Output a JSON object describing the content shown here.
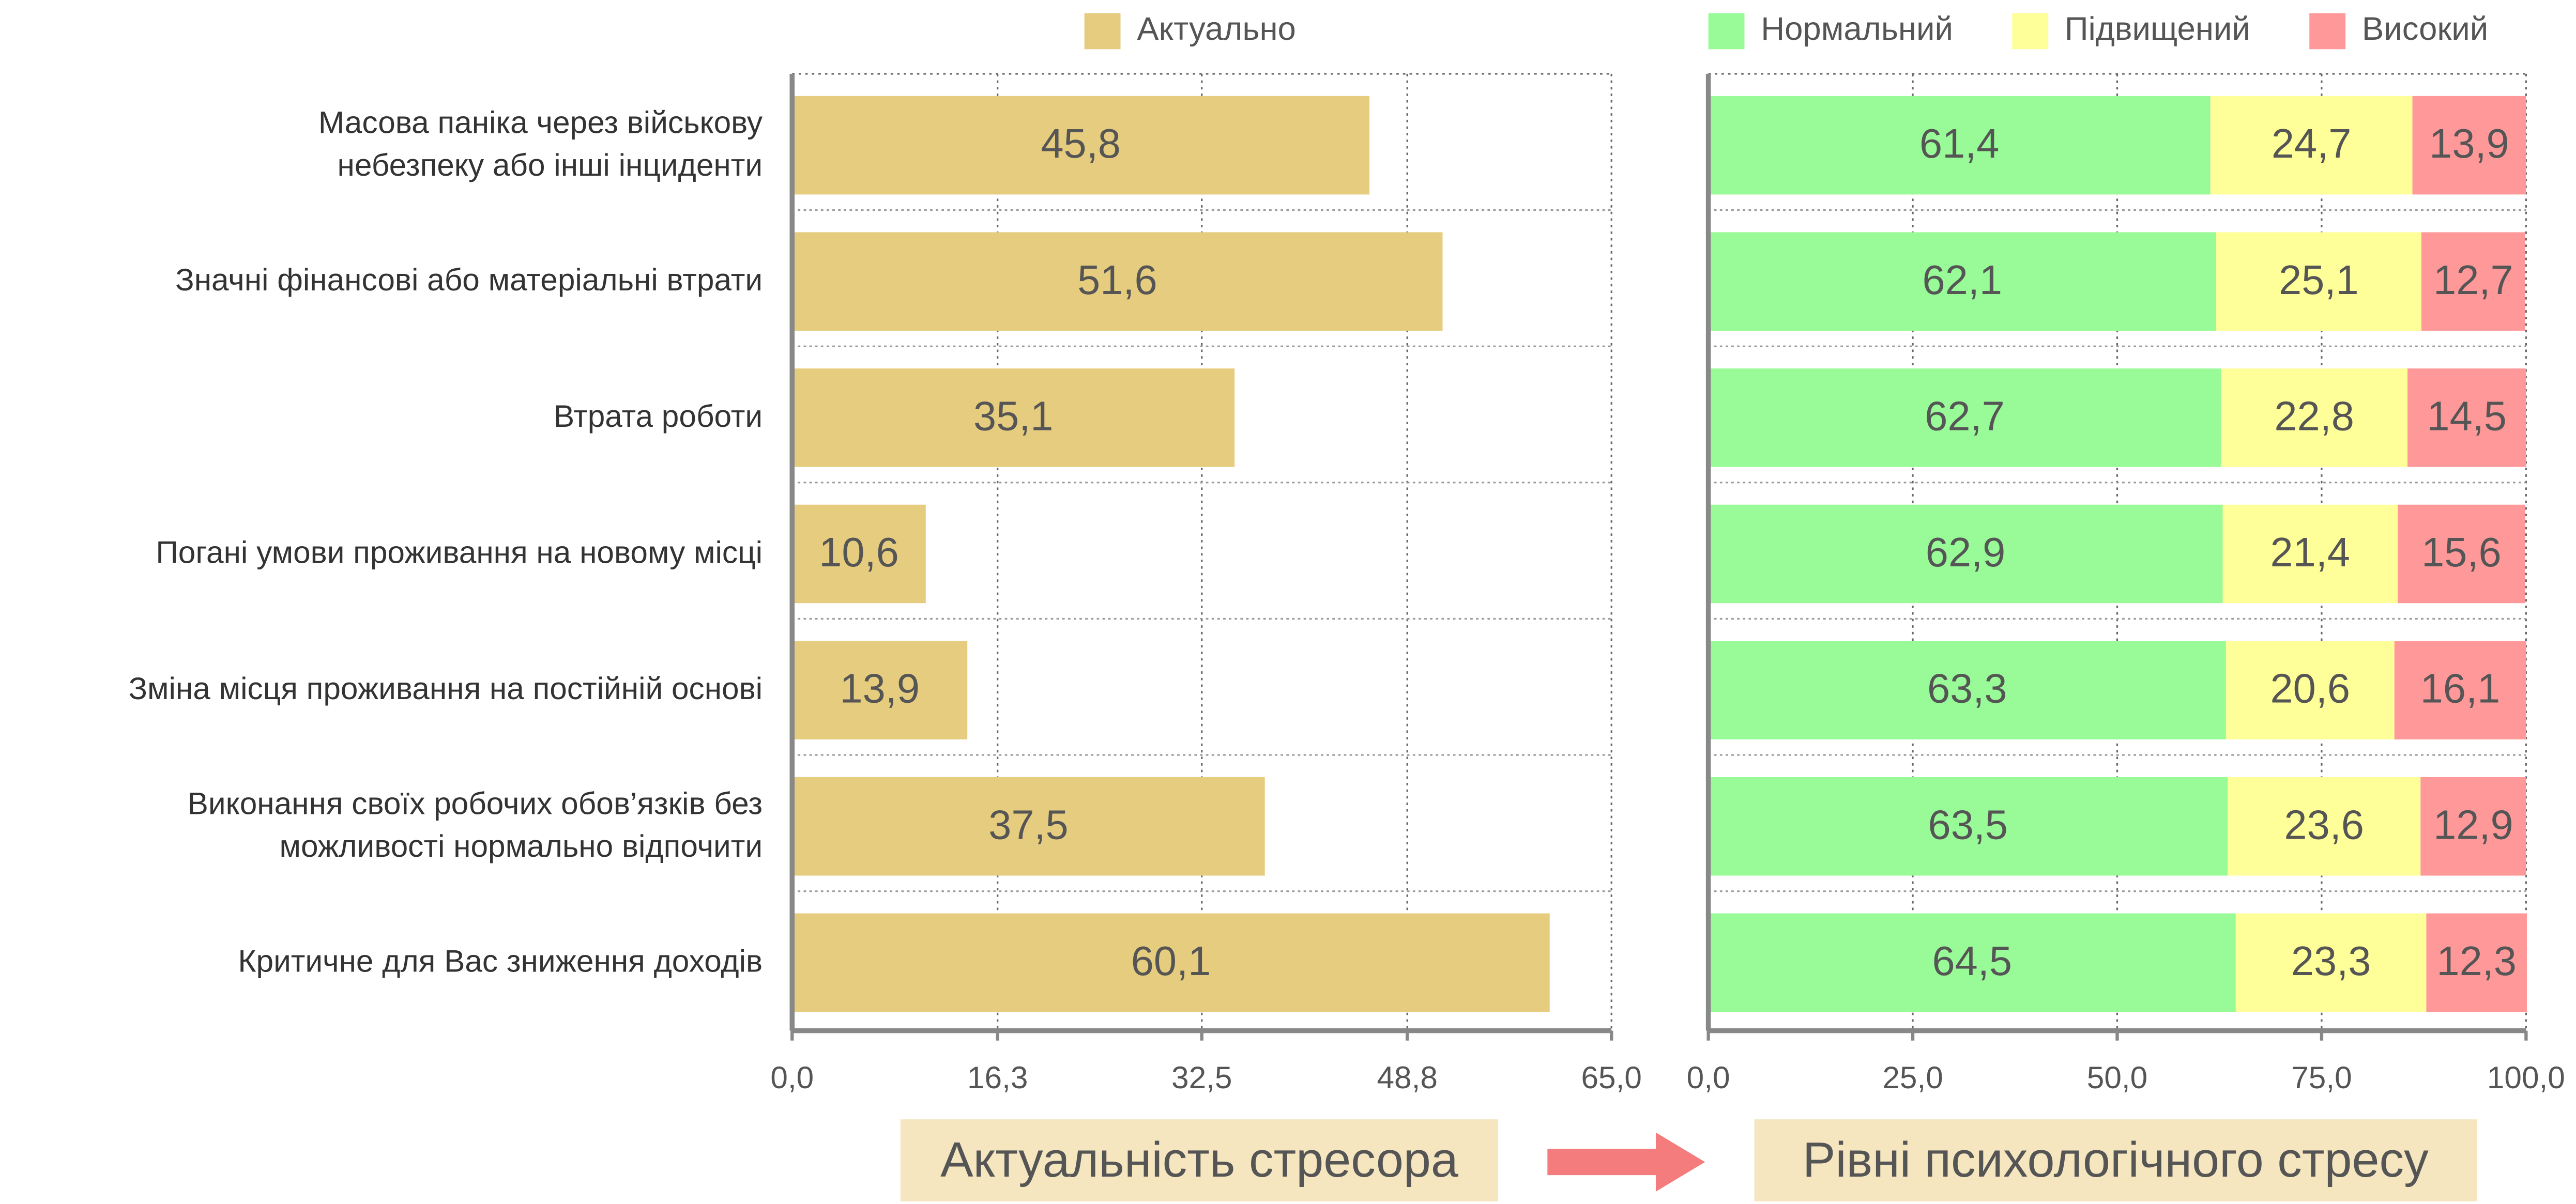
{
  "chart_data": [
    {
      "type": "hbar",
      "xlabel": "Актуальність стресора",
      "categories": [
        "Масова паніка через військову\nнебезпеку або інші інциденти ",
        "Значні фінансові або матеріальні втрати",
        "Втрата роботи",
        "Погані умови проживання на новому місці",
        "Зміна місця проживання на постійній основі",
        "Виконання своїх робочих обов’язків без\nможливості нормально відпочити",
        "Критичне для Вас зниження доходів"
      ],
      "series": [
        {
          "name": "Актуально",
          "color": "#e5cc7e",
          "values": [
            45.8,
            51.6,
            35.1,
            10.6,
            13.9,
            37.5,
            60.1
          ],
          "value_labels": [
            "45,8",
            "51,6",
            "35,1",
            "10,6",
            "13,9",
            "37,5",
            "60,1"
          ]
        }
      ],
      "xlim": [
        0,
        65
      ],
      "xticks": [
        {
          "value": 0,
          "label": "0,0"
        },
        {
          "value": 16.3,
          "label": "16,3"
        },
        {
          "value": 32.5,
          "label": "32,5"
        },
        {
          "value": 48.8,
          "label": "48,8"
        },
        {
          "value": 65,
          "label": "65,0"
        }
      ],
      "grid": true
    },
    {
      "type": "stacked-hbar",
      "xlabel": "Рівні психологічного стресу",
      "series": [
        {
          "name": "Нормальний",
          "color": "#98fb98",
          "values": [
            61.4,
            62.1,
            62.7,
            62.9,
            63.3,
            63.5,
            64.5
          ],
          "value_labels": [
            "61,4",
            "62,1",
            "62,7",
            "62,9",
            "63,3",
            "63,5",
            "64,5"
          ]
        },
        {
          "name": "Підвищений",
          "color": "#ffff99",
          "values": [
            24.7,
            25.1,
            22.8,
            21.4,
            20.6,
            23.6,
            23.3
          ],
          "value_labels": [
            "24,7",
            "25,1",
            "22,8",
            "21,4",
            "20,6",
            "23,6",
            "23,3"
          ]
        },
        {
          "name": "Високий",
          "color": "#ff9999",
          "values": [
            13.9,
            12.7,
            14.5,
            15.6,
            16.1,
            12.9,
            12.3
          ],
          "value_labels": [
            "13,9",
            "12,7",
            "14,5",
            "15,6",
            "16,1",
            "12,9",
            "12,3"
          ]
        }
      ],
      "xlim": [
        0,
        100
      ],
      "xticks": [
        {
          "value": 0,
          "label": "0,0"
        },
        {
          "value": 25,
          "label": "25,0"
        },
        {
          "value": 50,
          "label": "50,0"
        },
        {
          "value": 75,
          "label": "75,0"
        },
        {
          "value": 100,
          "label": "100,0"
        }
      ],
      "grid": true
    }
  ]
}
